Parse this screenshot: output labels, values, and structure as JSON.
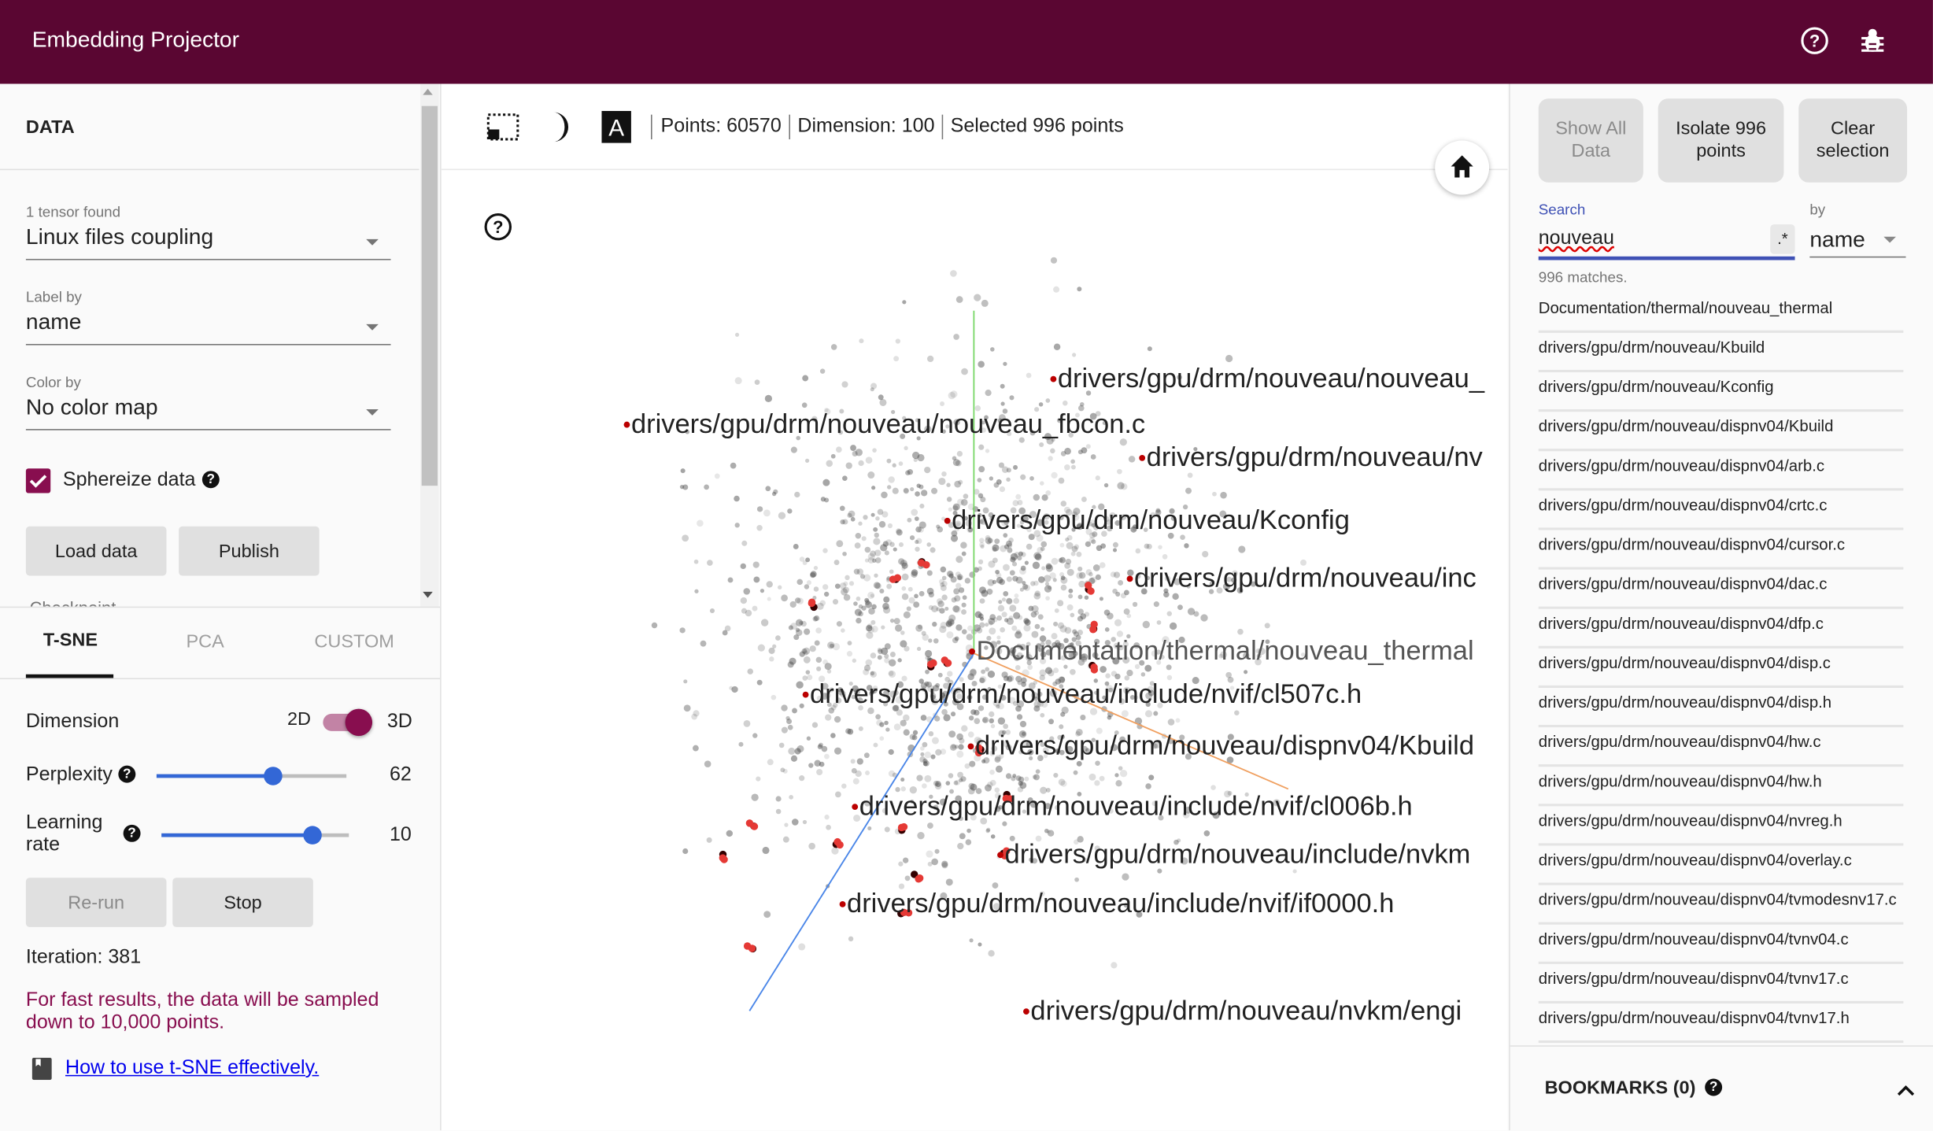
{
  "header": {
    "title": "Embedding Projector",
    "help_icon": "help-circle-icon",
    "bug_icon": "bug-icon",
    "bg_color": "#5a0632"
  },
  "data_panel": {
    "title": "DATA",
    "tensor_label": "1 tensor found",
    "tensor_value": "Linux files coupling",
    "label_by_label": "Label by",
    "label_by_value": "name",
    "color_by_label": "Color by",
    "color_by_value": "No color map",
    "sphereize_label": "Sphereize data",
    "sphereize_checked": true,
    "load_button": "Load data",
    "publish_button": "Publish",
    "cut_text": "Checkpoint"
  },
  "projection": {
    "tabs": [
      {
        "label": "T-SNE",
        "active": true
      },
      {
        "label": "PCA"
      },
      {
        "label": "CUSTOM"
      }
    ],
    "dimension_label": "Dimension",
    "dim_2d": "2D",
    "dim_3d": "3D",
    "dimension_value": "3D",
    "perplexity_label": "Perplexity",
    "perplexity_value": "62",
    "perplexity_fraction": 0.61,
    "learning_rate_label": "Learning rate",
    "learning_rate_value": "10",
    "learning_rate_fraction": 0.8,
    "rerun_button": "Re-run",
    "stop_button": "Stop",
    "iteration": "Iteration: 381",
    "warning": "For fast results, the data will be sampled down to 10,000 points.",
    "link": "How to use t-SNE effectively.",
    "accent_color": "#880e4f"
  },
  "toolbar": {
    "points": "Points: 60570",
    "dimension": "Dimension: 100",
    "selected": "Selected 996 points"
  },
  "canvas": {
    "labels": [
      "drivers/gpu/drm/nouveau/nouveau_",
      "drivers/gpu/drm/nouveau/nouveau_fbcon.c",
      "drivers/gpu/drm/nouveau/nv",
      "drivers/gpu/drm/nouveau/Kconfig",
      "drivers/gpu/drm/nouveau/inc",
      "Documentation/thermal/nouveau_thermal",
      "drivers/gpu/drm/nouveau/include/nvif/cl507c.h",
      "drivers/gpu/drm/nouveau/dispnv04/Kbuild",
      "drivers/gpu/drm/nouveau/include/nvif/cl006b.h",
      "drivers/gpu/drm/nouveau/include/nvkm",
      "drivers/gpu/drm/nouveau/include/nvif/if0000.h",
      "drivers/gpu/drm/nouveau/nvkm/engi"
    ]
  },
  "inspector": {
    "show_all_button": "Show All Data",
    "isolate_button": "Isolate 996 points",
    "clear_button": "Clear selection",
    "search_label": "Search",
    "search_value": "nouveau",
    "regex_button": ".*",
    "by_label": "by",
    "by_value": "name",
    "matches": "996 matches.",
    "results": [
      "Documentation/thermal/nouveau_thermal",
      "drivers/gpu/drm/nouveau/Kbuild",
      "drivers/gpu/drm/nouveau/Kconfig",
      "drivers/gpu/drm/nouveau/dispnv04/Kbuild",
      "drivers/gpu/drm/nouveau/dispnv04/arb.c",
      "drivers/gpu/drm/nouveau/dispnv04/crtc.c",
      "drivers/gpu/drm/nouveau/dispnv04/cursor.c",
      "drivers/gpu/drm/nouveau/dispnv04/dac.c",
      "drivers/gpu/drm/nouveau/dispnv04/dfp.c",
      "drivers/gpu/drm/nouveau/dispnv04/disp.c",
      "drivers/gpu/drm/nouveau/dispnv04/disp.h",
      "drivers/gpu/drm/nouveau/dispnv04/hw.c",
      "drivers/gpu/drm/nouveau/dispnv04/hw.h",
      "drivers/gpu/drm/nouveau/dispnv04/nvreg.h",
      "drivers/gpu/drm/nouveau/dispnv04/overlay.c",
      "drivers/gpu/drm/nouveau/dispnv04/tvmodesnv17.c",
      "drivers/gpu/drm/nouveau/dispnv04/tvnv04.c",
      "drivers/gpu/drm/nouveau/dispnv04/tvnv17.c",
      "drivers/gpu/drm/nouveau/dispnv04/tvnv17.h"
    ],
    "bookmarks": "BOOKMARKS (0)"
  }
}
